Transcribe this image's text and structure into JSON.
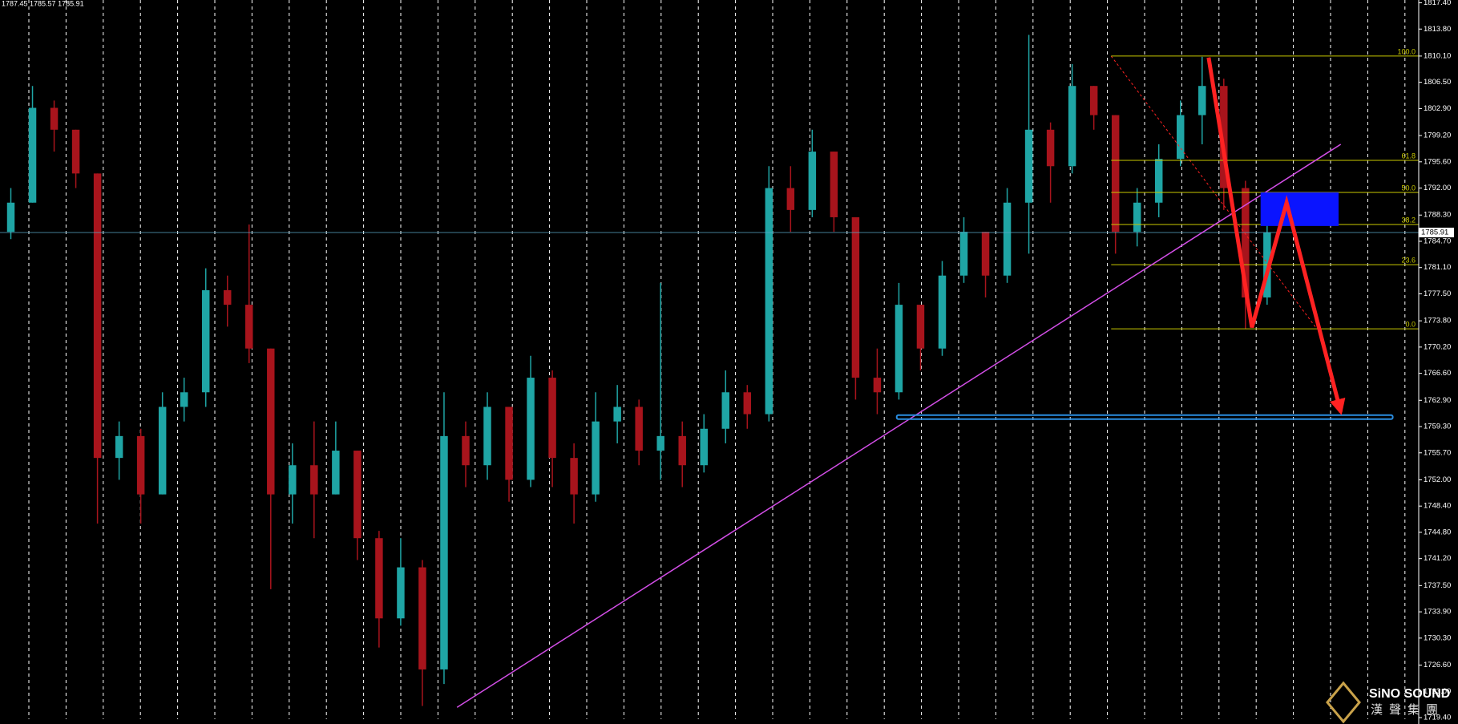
{
  "header": "1787.45 1785.57 1785.91",
  "logo": {
    "name": "SiNO SOUND",
    "subtitle": "漢聲集團"
  },
  "chart_data": {
    "type": "candlestick",
    "x": [
      0,
      1,
      2,
      3,
      4,
      5,
      6,
      7,
      8,
      9,
      10,
      11,
      12,
      13,
      14,
      15,
      16,
      17,
      18,
      19,
      20,
      21,
      22,
      23,
      24,
      25,
      26,
      27,
      28,
      29,
      30,
      31,
      32,
      33,
      34,
      35,
      36,
      37,
      38,
      39,
      40,
      41,
      42,
      43,
      44,
      45,
      46,
      47,
      48,
      49,
      50,
      51,
      52,
      53,
      54,
      55,
      56,
      57,
      58
    ],
    "open": [
      1786,
      1790,
      1803,
      1800,
      1794,
      1755,
      1758,
      1750,
      1762,
      1764,
      1778,
      1776,
      1770,
      1750,
      1754,
      1750,
      1756,
      1744,
      1733,
      1740,
      1726,
      1758,
      1754,
      1762,
      1752,
      1766,
      1755,
      1750,
      1760,
      1762,
      1756,
      1758,
      1754,
      1759,
      1764,
      1761,
      1792,
      1789,
      1797,
      1788,
      1766,
      1764,
      1776,
      1770,
      1780,
      1786,
      1780,
      1790,
      1800,
      1795,
      1806,
      1802,
      1786,
      1790,
      1796,
      1802,
      1806,
      1792,
      1777
    ],
    "high": [
      1792,
      1806,
      1804,
      1800,
      1794,
      1760,
      1759,
      1764,
      1766,
      1781,
      1780,
      1787,
      1770,
      1757,
      1760,
      1760,
      1756,
      1745,
      1744,
      1741,
      1764,
      1760,
      1764,
      1762,
      1769,
      1767,
      1757,
      1764,
      1765,
      1763,
      1779,
      1760,
      1761,
      1767,
      1765,
      1795,
      1795,
      1800,
      1797,
      1788,
      1770,
      1779,
      1776,
      1782,
      1788,
      1786,
      1792,
      1813,
      1801,
      1809,
      1806,
      1802,
      1792,
      1798,
      1804,
      1810,
      1807,
      1793,
      1787
    ],
    "low": [
      1785,
      1790,
      1797,
      1792,
      1746,
      1752,
      1746,
      1750,
      1760,
      1762,
      1773,
      1768,
      1737,
      1746,
      1744,
      1750,
      1741,
      1729,
      1732,
      1721,
      1724,
      1751,
      1752,
      1749,
      1751,
      1751,
      1746,
      1749,
      1757,
      1754,
      1752,
      1751,
      1753,
      1757,
      1759,
      1760,
      1786,
      1788,
      1786,
      1763,
      1761,
      1763,
      1767,
      1769,
      1779,
      1777,
      1779,
      1783,
      1790,
      1794,
      1800,
      1783,
      1784,
      1788,
      1795,
      1798,
      1789,
      1772.7,
      1776
    ],
    "close": [
      1790,
      1803,
      1800,
      1794,
      1755,
      1758,
      1750,
      1762,
      1764,
      1778,
      1776,
      1770,
      1750,
      1754,
      1750,
      1756,
      1744,
      1733,
      1740,
      1726,
      1758,
      1754,
      1762,
      1752,
      1766,
      1755,
      1750,
      1760,
      1762,
      1756,
      1758,
      1754,
      1759,
      1764,
      1761,
      1792,
      1789,
      1797,
      1788,
      1766,
      1764,
      1776,
      1770,
      1780,
      1786,
      1780,
      1790,
      1800,
      1795,
      1806,
      1802,
      1786,
      1790,
      1796,
      1802,
      1806,
      1792,
      1777,
      1785.91
    ],
    "up_color": "#1fa5a5",
    "down_color": "#a8141c",
    "xlim": [
      -0.5,
      65
    ],
    "ylim": [
      1719.4,
      1817.4
    ],
    "yticks": [
      {
        "value": 1817.4,
        "label": "1817.40"
      },
      {
        "value": 1813.8,
        "label": "1813.80"
      },
      {
        "value": 1810.1,
        "label": "1810.10"
      },
      {
        "value": 1806.5,
        "label": "1806.50"
      },
      {
        "value": 1802.9,
        "label": "1802.90"
      },
      {
        "value": 1799.2,
        "label": "1799.20"
      },
      {
        "value": 1795.6,
        "label": "1795.60"
      },
      {
        "value": 1792.0,
        "label": "1792.00"
      },
      {
        "value": 1788.3,
        "label": "1788.30"
      },
      {
        "value": 1784.7,
        "label": "1784.70"
      },
      {
        "value": 1781.1,
        "label": "1781.10"
      },
      {
        "value": 1777.5,
        "label": "1777.50"
      },
      {
        "value": 1773.8,
        "label": "1773.80"
      },
      {
        "value": 1770.2,
        "label": "1770.20"
      },
      {
        "value": 1766.6,
        "label": "1766.60"
      },
      {
        "value": 1762.9,
        "label": "1762.90"
      },
      {
        "value": 1759.3,
        "label": "1759.30"
      },
      {
        "value": 1755.7,
        "label": "1755.70"
      },
      {
        "value": 1752.0,
        "label": "1752.00"
      },
      {
        "value": 1748.4,
        "label": "1748.40"
      },
      {
        "value": 1744.8,
        "label": "1744.80"
      },
      {
        "value": 1741.2,
        "label": "1741.20"
      },
      {
        "value": 1737.5,
        "label": "1737.50"
      },
      {
        "value": 1733.9,
        "label": "1733.90"
      },
      {
        "value": 1730.3,
        "label": "1730.30"
      },
      {
        "value": 1726.6,
        "label": "1726.60"
      },
      {
        "value": 1723.0,
        "label": "1723.00"
      },
      {
        "value": 1719.4,
        "label": "1719.40"
      }
    ],
    "last_price": 1785.91,
    "trendline": {
      "x": [
        20.6,
        61.4
      ],
      "y": [
        1720.8,
        1798.0
      ],
      "color": "#d24ee6"
    },
    "support": {
      "x": [
        40.9,
        63.8
      ],
      "y": 1760.6,
      "color": "#2a8de0"
    },
    "zone": {
      "x": [
        57.7,
        61.3
      ],
      "y": [
        1786.8,
        1791.4
      ],
      "color": "#0a14ff"
    },
    "fibonacci": {
      "x": [
        50.8,
        60.3
      ],
      "color": "#c8c800",
      "levels": [
        {
          "label": "100.0",
          "value": 1810.1
        },
        {
          "label": "61.8",
          "value": 1795.8
        },
        {
          "label": "50.0",
          "value": 1791.4
        },
        {
          "label": "38.2",
          "value": 1787.0
        },
        {
          "label": "23.6",
          "value": 1781.5
        },
        {
          "label": "0.0",
          "value": 1772.7
        }
      ]
    },
    "arrow": {
      "x": [
        55.3,
        57.3,
        58.9,
        61.4
      ],
      "y": [
        1809.9,
        1772.9,
        1790.0,
        1761.3
      ],
      "color": "#ff2222"
    }
  }
}
